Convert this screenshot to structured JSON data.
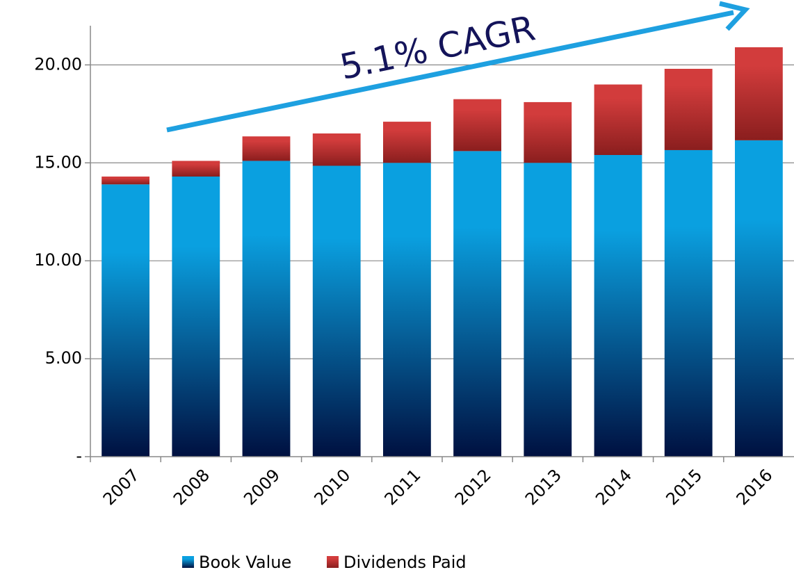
{
  "chart_data": {
    "type": "stacked_bar",
    "annotation": "5.1% CAGR",
    "categories": [
      "2007",
      "2008",
      "2009",
      "2010",
      "2011",
      "2012",
      "2013",
      "2014",
      "2015",
      "2016"
    ],
    "series": [
      {
        "name": "Book Value",
        "color": "#0aa0e0",
        "values": [
          13.9,
          14.3,
          15.1,
          14.85,
          15.0,
          15.6,
          15.0,
          15.4,
          15.65,
          16.15
        ]
      },
      {
        "name": "Dividends Paid",
        "color": "#d23c3c",
        "values": [
          0.4,
          0.8,
          1.25,
          1.65,
          2.1,
          2.65,
          3.1,
          3.6,
          4.15,
          4.75
        ]
      }
    ],
    "ylim": [
      0,
      22
    ],
    "yticks": [
      {
        "value": 0,
        "label": "-"
      },
      {
        "value": 5,
        "label": "5.00"
      },
      {
        "value": 10,
        "label": "10.00"
      },
      {
        "value": 15,
        "label": "15.00"
      },
      {
        "value": 20,
        "label": "20.00"
      }
    ],
    "grid": true,
    "legend": "bottom"
  }
}
